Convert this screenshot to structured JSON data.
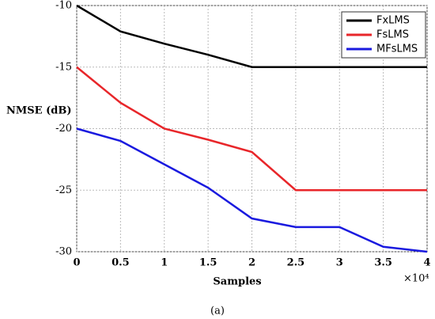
{
  "chart_data": {
    "type": "line",
    "x_label": "Samples",
    "y_label": "NMSE (dB)",
    "x_scale_label": "×10⁴",
    "caption": "(a)",
    "x": [
      0,
      0.5,
      1,
      1.5,
      2,
      2.5,
      3,
      3.5,
      4
    ],
    "series": [
      {
        "name": "FxLMS",
        "color": "#000000",
        "values": [
          -10,
          -12.1,
          -13.1,
          -14,
          -15,
          -15,
          -15,
          -15,
          -15
        ]
      },
      {
        "name": "FsLMS",
        "color": "#e8262a",
        "values": [
          -15,
          -17.9,
          -20,
          -20.9,
          -21.9,
          -25,
          -25,
          -25,
          -25
        ]
      },
      {
        "name": "MFsLMS",
        "color": "#1a1adf",
        "values": [
          -20,
          -21,
          -22.9,
          -24.8,
          -27.3,
          -28,
          -28,
          -29.6,
          -30
        ]
      }
    ],
    "xlim": [
      0,
      4
    ],
    "xticks": [
      0,
      0.5,
      1,
      1.5,
      2,
      2.5,
      3,
      3.5,
      4
    ],
    "ylim": [
      -30,
      -10
    ],
    "yticks": [
      -10,
      -15,
      -20,
      -25,
      -30
    ],
    "grid": true,
    "legend": "upper right"
  }
}
